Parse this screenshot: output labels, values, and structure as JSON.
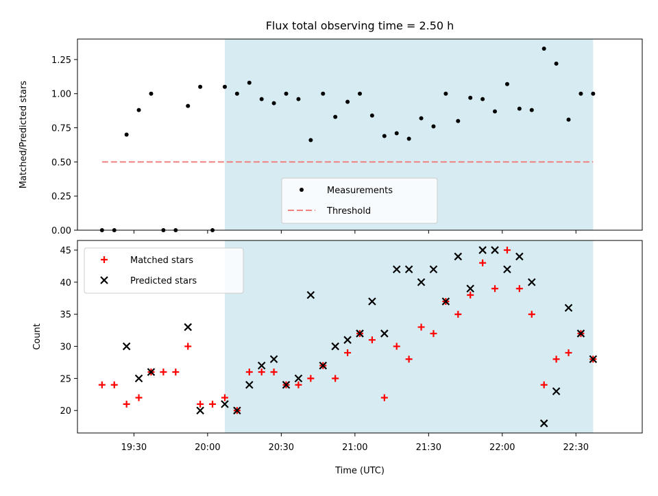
{
  "title": "Flux total observing time = 2.50 h",
  "colors": {
    "shade": "#add8e6",
    "measurement": "#000000",
    "threshold": "#f08080",
    "matched": "#ff0000",
    "predicted": "#000000"
  },
  "chart_data": [
    {
      "type": "scatter",
      "ylabel": "Matched/Predicted stars",
      "xlim": [
        "19:07",
        "22:57"
      ],
      "ylim": [
        0,
        1.4
      ],
      "yticks": [
        "0.00",
        "0.25",
        "0.50",
        "0.75",
        "1.00",
        "1.25"
      ],
      "shaded_interval": [
        "20:07",
        "22:37"
      ],
      "legend": {
        "placement": "lower center",
        "entries": [
          "Measurements",
          "Threshold"
        ]
      },
      "threshold": {
        "name": "Threshold",
        "value": 0.5,
        "x_range": [
          "19:17",
          "22:37"
        ]
      },
      "series": [
        {
          "name": "Measurements",
          "points": [
            [
              "19:17",
              0.0
            ],
            [
              "19:22",
              0.0
            ],
            [
              "19:27",
              0.7
            ],
            [
              "19:32",
              0.88
            ],
            [
              "19:37",
              1.0
            ],
            [
              "19:42",
              0.0
            ],
            [
              "19:47",
              0.0
            ],
            [
              "19:52",
              0.91
            ],
            [
              "19:57",
              1.05
            ],
            [
              "20:02",
              0.0
            ],
            [
              "20:07",
              1.05
            ],
            [
              "20:12",
              1.0
            ],
            [
              "20:17",
              1.08
            ],
            [
              "20:22",
              0.96
            ],
            [
              "20:27",
              0.93
            ],
            [
              "20:32",
              1.0
            ],
            [
              "20:37",
              0.96
            ],
            [
              "20:42",
              0.66
            ],
            [
              "20:47",
              1.0
            ],
            [
              "20:52",
              0.83
            ],
            [
              "20:57",
              0.94
            ],
            [
              "21:02",
              1.0
            ],
            [
              "21:07",
              0.84
            ],
            [
              "21:12",
              0.69
            ],
            [
              "21:17",
              0.71
            ],
            [
              "21:22",
              0.67
            ],
            [
              "21:27",
              0.82
            ],
            [
              "21:32",
              0.76
            ],
            [
              "21:37",
              1.0
            ],
            [
              "21:42",
              0.8
            ],
            [
              "21:47",
              0.97
            ],
            [
              "21:52",
              0.96
            ],
            [
              "21:57",
              0.87
            ],
            [
              "22:02",
              1.07
            ],
            [
              "22:07",
              0.89
            ],
            [
              "22:12",
              0.88
            ],
            [
              "22:17",
              1.33
            ],
            [
              "22:22",
              1.22
            ],
            [
              "22:27",
              0.81
            ],
            [
              "22:32",
              1.0
            ],
            [
              "22:37",
              1.0
            ]
          ]
        }
      ]
    },
    {
      "type": "scatter",
      "xlabel": "Time (UTC)",
      "ylabel": "Count",
      "xlim": [
        "19:07",
        "22:57"
      ],
      "ylim": [
        16.5,
        46.5
      ],
      "yticks": [
        "20",
        "25",
        "30",
        "35",
        "40",
        "45"
      ],
      "xticks": [
        "19:30",
        "20:00",
        "20:30",
        "21:00",
        "21:30",
        "22:00",
        "22:30"
      ],
      "shaded_interval": [
        "20:07",
        "22:37"
      ],
      "legend": {
        "placement": "upper left",
        "entries": [
          "Matched stars",
          "Predicted stars"
        ]
      },
      "series": [
        {
          "name": "Matched stars",
          "marker": "+",
          "points": [
            [
              "19:17",
              24
            ],
            [
              "19:22",
              24
            ],
            [
              "19:27",
              21
            ],
            [
              "19:32",
              22
            ],
            [
              "19:37",
              26
            ],
            [
              "19:42",
              26
            ],
            [
              "19:47",
              26
            ],
            [
              "19:52",
              30
            ],
            [
              "19:57",
              21
            ],
            [
              "20:02",
              21
            ],
            [
              "20:07",
              22
            ],
            [
              "20:12",
              20
            ],
            [
              "20:17",
              26
            ],
            [
              "20:22",
              26
            ],
            [
              "20:27",
              26
            ],
            [
              "20:32",
              24
            ],
            [
              "20:37",
              24
            ],
            [
              "20:42",
              25
            ],
            [
              "20:47",
              27
            ],
            [
              "20:52",
              25
            ],
            [
              "20:57",
              29
            ],
            [
              "21:02",
              32
            ],
            [
              "21:07",
              31
            ],
            [
              "21:12",
              22
            ],
            [
              "21:17",
              30
            ],
            [
              "21:22",
              28
            ],
            [
              "21:27",
              33
            ],
            [
              "21:32",
              32
            ],
            [
              "21:37",
              37
            ],
            [
              "21:42",
              35
            ],
            [
              "21:47",
              38
            ],
            [
              "21:52",
              43
            ],
            [
              "21:57",
              39
            ],
            [
              "22:02",
              45
            ],
            [
              "22:07",
              39
            ],
            [
              "22:12",
              35
            ],
            [
              "22:17",
              24
            ],
            [
              "22:22",
              28
            ],
            [
              "22:27",
              29
            ],
            [
              "22:32",
              32
            ],
            [
              "22:37",
              28
            ]
          ]
        },
        {
          "name": "Predicted stars",
          "marker": "x",
          "points": [
            [
              "19:27",
              30
            ],
            [
              "19:32",
              25
            ],
            [
              "19:37",
              26
            ],
            [
              "19:52",
              33
            ],
            [
              "19:57",
              20
            ],
            [
              "20:07",
              21
            ],
            [
              "20:12",
              20
            ],
            [
              "20:17",
              24
            ],
            [
              "20:22",
              27
            ],
            [
              "20:27",
              28
            ],
            [
              "20:32",
              24
            ],
            [
              "20:37",
              25
            ],
            [
              "20:42",
              38
            ],
            [
              "20:47",
              27
            ],
            [
              "20:52",
              30
            ],
            [
              "20:57",
              31
            ],
            [
              "21:02",
              32
            ],
            [
              "21:07",
              37
            ],
            [
              "21:12",
              32
            ],
            [
              "21:17",
              42
            ],
            [
              "21:22",
              42
            ],
            [
              "21:27",
              40
            ],
            [
              "21:32",
              42
            ],
            [
              "21:37",
              37
            ],
            [
              "21:42",
              44
            ],
            [
              "21:47",
              39
            ],
            [
              "21:52",
              45
            ],
            [
              "21:57",
              45
            ],
            [
              "22:02",
              42
            ],
            [
              "22:07",
              44
            ],
            [
              "22:12",
              40
            ],
            [
              "22:17",
              18
            ],
            [
              "22:22",
              23
            ],
            [
              "22:27",
              36
            ],
            [
              "22:32",
              32
            ],
            [
              "22:37",
              28
            ]
          ]
        }
      ]
    }
  ]
}
